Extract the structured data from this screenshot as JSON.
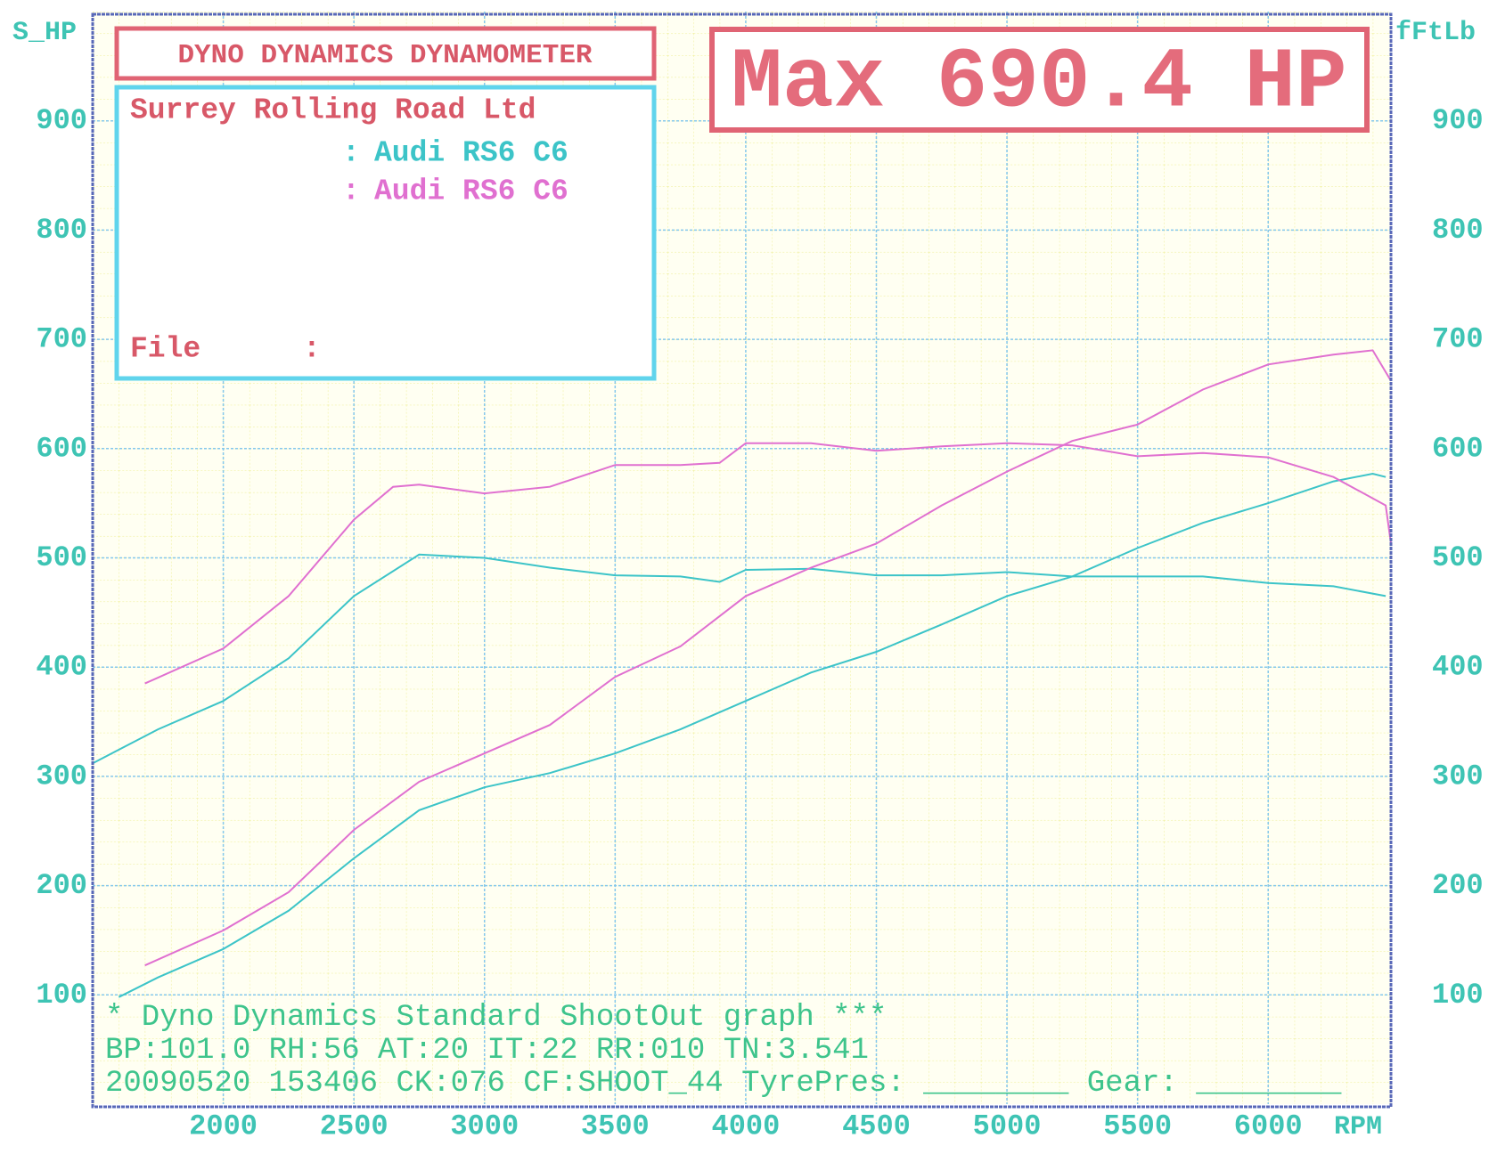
{
  "chart_data": {
    "type": "line",
    "title": "DYNO DYNAMICS DYNAMOMETER",
    "annotation": "Max 690.4 HP",
    "info": {
      "company": "Surrey Rolling Road Ltd",
      "file_label": "File",
      "separator": ":"
    },
    "y_label": "S_HP",
    "y2_label": "fFtLb",
    "x_label": "RPM",
    "footer": [
      "* Dyno Dynamics Standard ShootOut graph ***",
      "BP:101.0 RH:56 AT:20 IT:22  RR:010 TN:3.541",
      "20090520 153406 CK:076 CF:SHOOT_44 TyrePres: ________ Gear: ________"
    ],
    "xlim": [
      1500,
      6470
    ],
    "xticks": [
      2000,
      2500,
      3000,
      3500,
      4000,
      4500,
      5000,
      5500,
      6000
    ],
    "ylim": [
      0,
      1000
    ],
    "yticks": [
      100,
      200,
      300,
      400,
      500,
      600,
      700,
      800,
      900
    ],
    "y2lim": [
      0,
      1000
    ],
    "y2ticks": [
      100,
      200,
      300,
      400,
      500,
      600,
      700,
      800,
      900
    ],
    "grid": true,
    "series": [
      {
        "name": "Audi RS6 C6",
        "color": "#3cc4c8",
        "power": {
          "x": [
            1600,
            1750,
            2000,
            2250,
            2500,
            2750,
            3000,
            3250,
            3500,
            3750,
            4000,
            4250,
            4500,
            4750,
            5000,
            5250,
            5500,
            5750,
            6000,
            6250,
            6400,
            6450
          ],
          "values": [
            98,
            116,
            142,
            177,
            225,
            269,
            290,
            303,
            321,
            343,
            369,
            395,
            414,
            439,
            465,
            483,
            509,
            532,
            550,
            570,
            577,
            574
          ]
        },
        "torque": {
          "axis": "y2",
          "x": [
            1500,
            1750,
            2000,
            2250,
            2500,
            2750,
            3000,
            3250,
            3500,
            3750,
            3900,
            4000,
            4250,
            4500,
            4750,
            5000,
            5250,
            5500,
            5750,
            6000,
            6250,
            6450
          ],
          "values": [
            312,
            343,
            369,
            408,
            465,
            503,
            500,
            491,
            484,
            483,
            478,
            489,
            490,
            484,
            484,
            487,
            483,
            483,
            483,
            477,
            474,
            465
          ]
        }
      },
      {
        "name": "Audi RS6 C6",
        "color": "#e070d0",
        "power": {
          "x": [
            1700,
            2000,
            2250,
            2500,
            2750,
            3000,
            3250,
            3500,
            3750,
            4000,
            4250,
            4500,
            4750,
            5000,
            5250,
            5500,
            5750,
            6000,
            6250,
            6400,
            6470
          ],
          "values": [
            127,
            159,
            194,
            251,
            295,
            321,
            347,
            391,
            419,
            465,
            491,
            513,
            548,
            579,
            607,
            622,
            654,
            677,
            686,
            690,
            662
          ]
        },
        "torque": {
          "axis": "y2",
          "x": [
            1700,
            2000,
            2250,
            2500,
            2650,
            2750,
            3000,
            3250,
            3500,
            3750,
            3900,
            4000,
            4250,
            4500,
            4750,
            5000,
            5250,
            5500,
            5750,
            6000,
            6250,
            6450,
            6470
          ],
          "values": [
            385,
            417,
            465,
            535,
            565,
            567,
            559,
            565,
            585,
            585,
            587,
            605,
            605,
            598,
            602,
            605,
            603,
            593,
            596,
            592,
            574,
            548,
            513
          ]
        }
      }
    ]
  }
}
